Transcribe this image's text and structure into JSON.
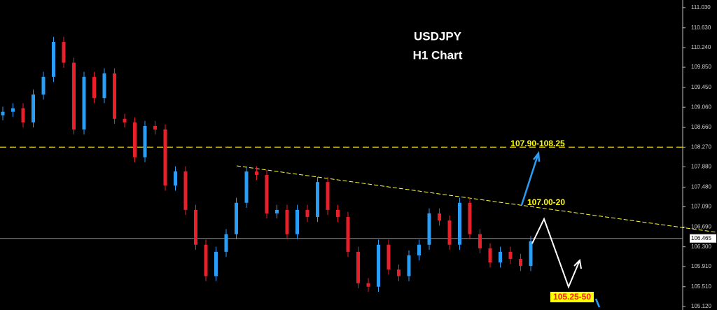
{
  "chart_data": {
    "type": "candlestick",
    "title": "USDJPY",
    "subtitle": "H1 Chart",
    "ylim": [
      105.05,
      111.18
    ],
    "yticks": [
      {
        "value": 111.03,
        "label": "111.030"
      },
      {
        "value": 110.63,
        "label": "110.630"
      },
      {
        "value": 110.24,
        "label": "110.240"
      },
      {
        "value": 109.85,
        "label": "109.850"
      },
      {
        "value": 109.45,
        "label": "109.450"
      },
      {
        "value": 109.06,
        "label": "109.060"
      },
      {
        "value": 108.66,
        "label": "108.660"
      },
      {
        "value": 108.27,
        "label": "108.270"
      },
      {
        "value": 107.88,
        "label": "107.880"
      },
      {
        "value": 107.48,
        "label": "107.480"
      },
      {
        "value": 107.09,
        "label": "107.090"
      },
      {
        "value": 106.69,
        "label": "106.690"
      },
      {
        "value": 106.3,
        "label": "106.300"
      },
      {
        "value": 105.91,
        "label": "105.910"
      },
      {
        "value": 105.51,
        "label": "105.510"
      },
      {
        "value": 105.12,
        "label": "105.120"
      }
    ],
    "up_color": "#2a9df4",
    "down_color": "#e8202a",
    "current_price": {
      "value": 106.465,
      "label": "106.465"
    },
    "resistance_level": 108.27,
    "annotations": [
      "107.90-108.25",
      "107.00-20",
      "105.25-50"
    ],
    "open": [
      108.9,
      108.97,
      109.04,
      108.76,
      109.31,
      109.66,
      110.35,
      109.94,
      108.62,
      109.66,
      109.24,
      109.73,
      108.83,
      108.76,
      108.07,
      108.69,
      108.62,
      107.51,
      107.79,
      107.03,
      106.34,
      105.72,
      106.2,
      106.55,
      107.17,
      107.79,
      107.72,
      106.96,
      107.03,
      106.55,
      107.03,
      106.89,
      107.58,
      107.03,
      106.89,
      106.2,
      105.58,
      105.51,
      106.34,
      105.85,
      105.72,
      106.13,
      106.34,
      106.96,
      106.82,
      106.34,
      107.17,
      106.55,
      106.27,
      105.99,
      106.2,
      106.06,
      105.92
    ],
    "high": [
      109.07,
      109.14,
      109.14,
      109.41,
      109.76,
      110.45,
      110.45,
      110.04,
      109.76,
      109.76,
      109.83,
      109.83,
      108.93,
      108.86,
      108.79,
      108.79,
      108.72,
      107.89,
      107.89,
      107.13,
      106.44,
      106.3,
      106.65,
      107.27,
      107.89,
      107.89,
      107.82,
      107.13,
      107.13,
      107.13,
      107.13,
      107.68,
      107.68,
      107.13,
      106.99,
      106.3,
      105.68,
      106.44,
      106.44,
      105.95,
      106.23,
      106.44,
      107.06,
      107.06,
      106.92,
      107.27,
      107.27,
      106.65,
      106.37,
      106.3,
      106.3,
      106.16,
      106.51
    ],
    "low": [
      108.8,
      108.87,
      108.66,
      108.66,
      109.21,
      109.56,
      109.84,
      108.52,
      108.52,
      109.14,
      109.14,
      108.73,
      108.66,
      107.97,
      107.97,
      108.52,
      107.41,
      107.41,
      106.93,
      106.24,
      105.62,
      105.62,
      106.1,
      106.45,
      107.07,
      107.62,
      106.86,
      106.86,
      106.45,
      106.45,
      106.79,
      106.79,
      106.93,
      106.79,
      106.1,
      105.48,
      105.41,
      105.41,
      105.75,
      105.62,
      105.62,
      106.03,
      106.24,
      106.72,
      106.24,
      106.24,
      106.45,
      106.17,
      105.89,
      105.89,
      105.96,
      105.82,
      105.82
    ],
    "close": [
      108.97,
      109.04,
      108.76,
      109.31,
      109.66,
      110.35,
      109.94,
      108.62,
      109.66,
      109.24,
      109.73,
      108.83,
      108.76,
      108.07,
      108.69,
      108.62,
      107.51,
      107.79,
      107.03,
      106.34,
      105.72,
      106.2,
      106.55,
      107.17,
      107.79,
      107.72,
      106.96,
      107.03,
      106.55,
      107.03,
      106.89,
      107.58,
      107.03,
      106.89,
      106.2,
      105.58,
      105.51,
      106.34,
      105.85,
      105.72,
      106.13,
      106.34,
      106.96,
      106.82,
      106.34,
      107.17,
      106.55,
      106.27,
      105.99,
      106.2,
      106.06,
      105.92,
      106.41
    ]
  }
}
